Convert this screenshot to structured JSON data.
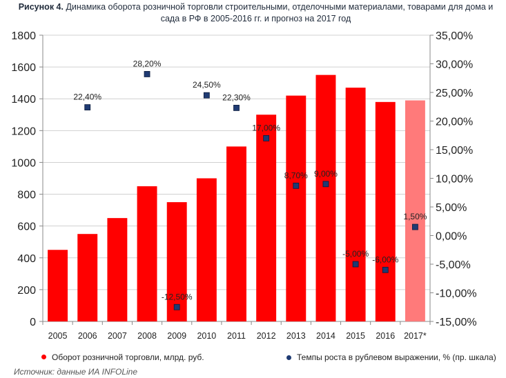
{
  "chart_data": {
    "type": "bar",
    "title_lead": "Рисунок 4.",
    "title": "Динамика оборота розничной торговли строительными, отделочными материалами, товарами для дома и сада в РФ в 2005-2016 гг. и прогноз на 2017 год",
    "categories": [
      "2005",
      "2006",
      "2007",
      "2008",
      "2009",
      "2010",
      "2011",
      "2012",
      "2013",
      "2014",
      "2015",
      "2016",
      "2017*"
    ],
    "series": [
      {
        "name": "Оборот розничной торговли, млрд. руб.",
        "type": "bar",
        "axis": "left",
        "color": "#ff0000",
        "forecast_color": "#ff7a7a",
        "forecast_index": 12,
        "values": [
          450,
          550,
          650,
          850,
          750,
          900,
          1100,
          1300,
          1420,
          1550,
          1470,
          1380,
          1390
        ]
      },
      {
        "name": "Темпы роста в рублевом выражении, % (пр. шкала)",
        "type": "scatter",
        "axis": "right",
        "color": "#1f3b73",
        "values": [
          null,
          22.4,
          null,
          28.2,
          -12.5,
          24.5,
          22.3,
          17.0,
          8.7,
          9.0,
          -5.0,
          -6.0,
          1.5
        ],
        "labels": [
          null,
          "22,40%",
          null,
          "28,20%",
          "-12,50%",
          "24,50%",
          "22,30%",
          "17,00%",
          "8,70%",
          "9,00%",
          "-5,00%",
          "-6,00%",
          "1,50%"
        ]
      }
    ],
    "y_left": {
      "lim": [
        0,
        1800
      ],
      "ticks": [
        0,
        200,
        400,
        600,
        800,
        1000,
        1200,
        1400,
        1600,
        1800
      ],
      "tick_labels": [
        "0",
        "200",
        "400",
        "600",
        "800",
        "1000",
        "1200",
        "1400",
        "1600",
        "1800"
      ]
    },
    "y_right": {
      "lim": [
        -15,
        35
      ],
      "ticks": [
        -15,
        -10,
        -5,
        0,
        5,
        10,
        15,
        20,
        25,
        30,
        35
      ],
      "tick_labels": [
        "-15,00%",
        "-10,00%",
        "-5,00%",
        "0,00%",
        "5,00%",
        "10,00%",
        "15,00%",
        "20,00%",
        "25,00%",
        "30,00%",
        "35,00%"
      ]
    },
    "grid": true,
    "legend_position": "bottom"
  },
  "legend": {
    "bar_label": "Оборот розничной торговли, млрд. руб.",
    "rate_label": "Темпы роста в рублевом выражении, % (пр. шкала)",
    "bar_color": "#ff0000",
    "rate_color": "#1f3b73"
  },
  "source": "Источник: данные ИА INFOLine"
}
